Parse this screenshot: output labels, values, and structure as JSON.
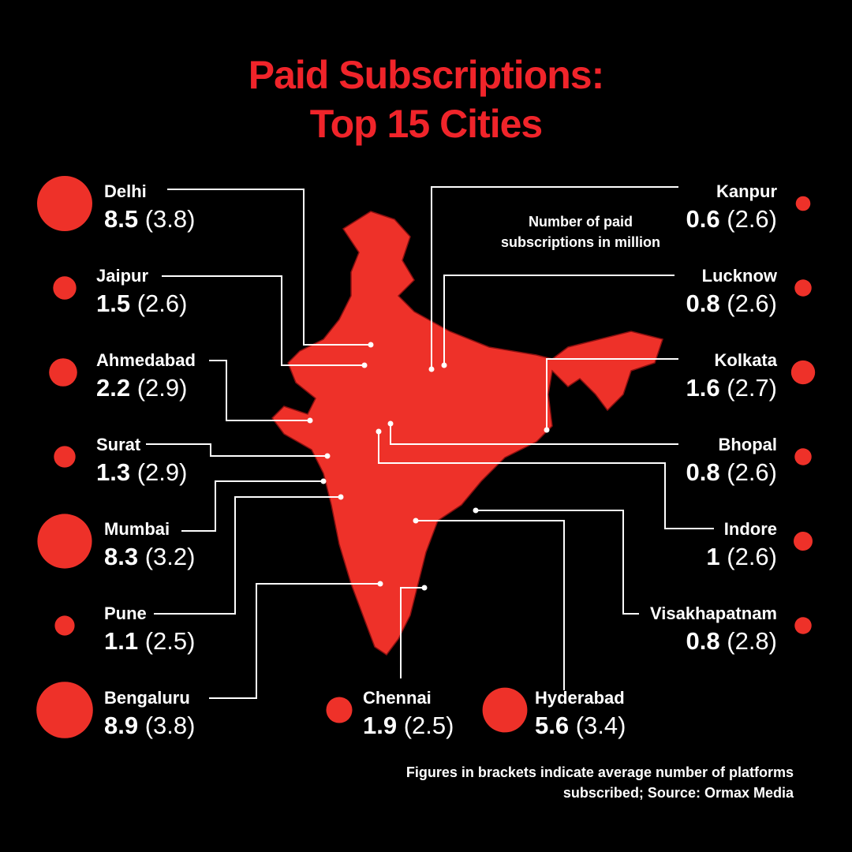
{
  "title": [
    "Paid Subscriptions:",
    "Top 15 Cities"
  ],
  "note": [
    "Number of paid",
    "subscriptions in million"
  ],
  "footnote": [
    "Figures in brackets indicate average number of platforms",
    "subscribed; Source: Ormax Media"
  ],
  "cities": [
    {
      "name": "Delhi",
      "value": 8.5,
      "platforms": "(3.8)"
    },
    {
      "name": "Jaipur",
      "value": 1.5,
      "platforms": "(2.6)"
    },
    {
      "name": "Ahmedabad",
      "value": 2.2,
      "platforms": "(2.9)"
    },
    {
      "name": "Surat",
      "value": 1.3,
      "platforms": "(2.9)"
    },
    {
      "name": "Mumbai",
      "value": 8.3,
      "platforms": "(3.2)"
    },
    {
      "name": "Pune",
      "value": 1.1,
      "platforms": "(2.5)"
    },
    {
      "name": "Bengaluru",
      "value": 8.9,
      "platforms": "(3.8)"
    },
    {
      "name": "Chennai",
      "value": 1.9,
      "platforms": "(2.5)"
    },
    {
      "name": "Hyderabad",
      "value": 5.6,
      "platforms": "(3.4)"
    },
    {
      "name": "Kanpur",
      "value": 0.6,
      "platforms": "(2.6)"
    },
    {
      "name": "Lucknow",
      "value": 0.8,
      "platforms": "(2.6)"
    },
    {
      "name": "Kolkata",
      "value": 1.6,
      "platforms": "(2.7)"
    },
    {
      "name": "Bhopal",
      "value": 0.8,
      "platforms": "(2.6)"
    },
    {
      "name": "Indore",
      "value": 1,
      "platforms": "(2.6)"
    },
    {
      "name": "Visakhapatnam",
      "value": 0.8,
      "platforms": "(2.8)"
    }
  ]
}
